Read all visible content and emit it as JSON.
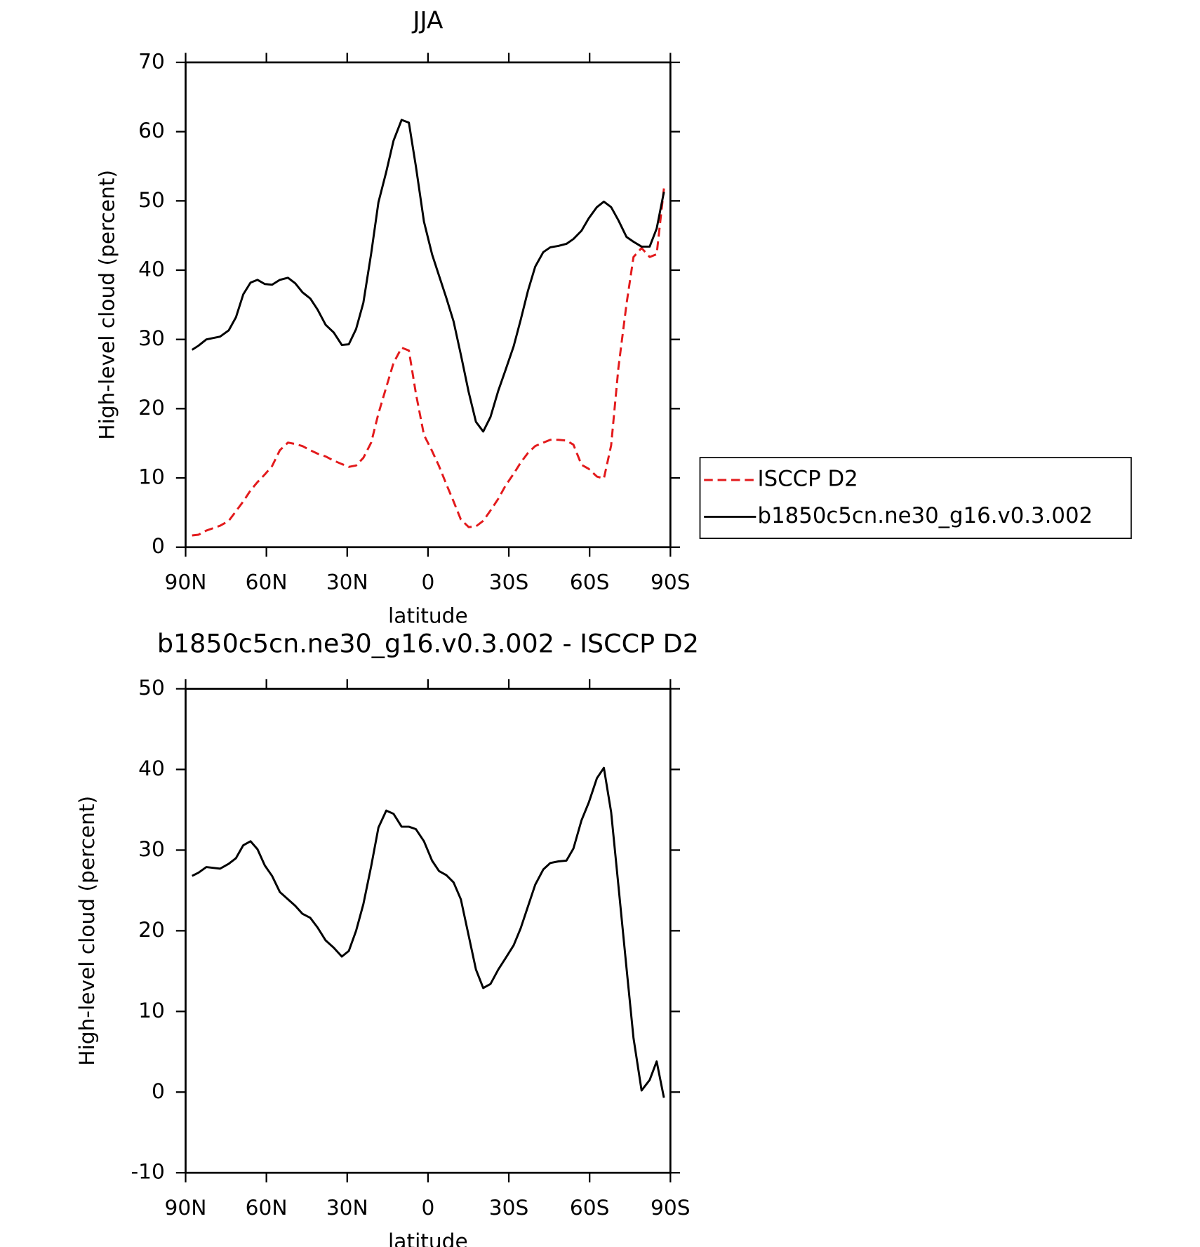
{
  "chart_data": [
    {
      "type": "line",
      "title": "JJA",
      "xlabel": "latitude",
      "ylabel": "High-level cloud (percent)",
      "x": [
        87.6,
        85.2,
        82.3,
        77.2,
        74.0,
        71.3,
        68.6,
        65.9,
        63.3,
        60.6,
        57.9,
        55.0,
        52.0,
        49.3,
        46.6,
        43.7,
        41.0,
        38.0,
        35.0,
        32.0,
        29.4,
        26.7,
        24.0,
        21.1,
        18.4,
        15.5,
        12.8,
        9.8,
        7.1,
        4.5,
        1.5,
        -1.5,
        -4.1,
        -6.8,
        -9.5,
        -12.2,
        -15.1,
        -17.8,
        -20.5,
        -23.2,
        -26.1,
        -28.8,
        -31.8,
        -34.4,
        -37.1,
        -39.8,
        -42.8,
        -45.4,
        -48.4,
        -51.4,
        -54.0,
        -57.0,
        -59.7,
        -62.7,
        -65.3,
        -68.0,
        -70.7,
        -73.7,
        -76.3,
        -79.3,
        -82.3,
        -84.9,
        -87.6
      ],
      "series": [
        {
          "name": "ISCCP D2",
          "color": "#e31a1c",
          "linestyle": "dashed",
          "values": [
            1.7,
            1.8,
            2.4,
            3.1,
            3.8,
            5.2,
            6.6,
            8.2,
            9.4,
            10.5,
            11.7,
            14.0,
            15.1,
            14.9,
            14.6,
            14.0,
            13.5,
            13.1,
            12.5,
            12.0,
            11.6,
            11.8,
            12.9,
            15.1,
            19.3,
            23.1,
            26.6,
            28.8,
            28.4,
            22.2,
            16.2,
            13.9,
            11.7,
            9.1,
            6.6,
            4.0,
            2.9,
            3.0,
            3.8,
            5.3,
            7.0,
            8.9,
            10.6,
            12.2,
            13.6,
            14.6,
            15.1,
            15.5,
            15.5,
            15.4,
            14.8,
            11.9,
            11.3,
            10.2,
            9.9,
            14.7,
            25.9,
            35.1,
            41.9,
            43.2,
            41.9,
            42.3,
            51.8
          ]
        },
        {
          "name": "b1850c5cn.ne30_g16.v0.3.002",
          "color": "#000000",
          "linestyle": "solid",
          "values": [
            28.5,
            29.1,
            30.0,
            30.4,
            31.3,
            33.2,
            36.5,
            38.2,
            38.6,
            38.0,
            37.9,
            38.6,
            38.9,
            38.1,
            36.8,
            35.9,
            34.3,
            32.1,
            31.0,
            29.2,
            29.3,
            31.5,
            35.3,
            42.4,
            49.8,
            54.2,
            58.7,
            61.7,
            61.3,
            55.0,
            47.0,
            42.3,
            39.2,
            36.0,
            32.6,
            27.8,
            22.4,
            18.1,
            16.7,
            18.8,
            22.6,
            25.6,
            29.0,
            32.8,
            37.0,
            40.5,
            42.6,
            43.3,
            43.5,
            43.8,
            44.5,
            45.7,
            47.5,
            49.1,
            49.9,
            49.1,
            47.2,
            44.8,
            44.1,
            43.4,
            43.4,
            46.0,
            51.3
          ]
        }
      ],
      "xlim": [
        90,
        -90
      ],
      "xticks": [
        {
          "value": 90,
          "label": "90N"
        },
        {
          "value": 60,
          "label": "60N"
        },
        {
          "value": 30,
          "label": "30N"
        },
        0,
        {
          "value": -30,
          "label": "30S"
        },
        {
          "value": -60,
          "label": "60S"
        },
        {
          "value": -90,
          "label": "90S"
        }
      ],
      "ylim": [
        0,
        70
      ],
      "yticks": [
        0,
        10,
        20,
        30,
        40,
        50,
        60,
        70
      ],
      "legend": "right"
    },
    {
      "type": "line",
      "title": "b1850c5cn.ne30_g16.v0.3.002 - ISCCP D2",
      "xlabel": "latitude",
      "ylabel": "High-level cloud (percent)",
      "x": [
        87.6,
        85.2,
        82.3,
        77.2,
        74.0,
        71.3,
        68.6,
        65.9,
        63.3,
        60.6,
        57.9,
        55.0,
        52.0,
        49.3,
        46.6,
        43.7,
        41.0,
        38.0,
        35.0,
        32.0,
        29.4,
        26.7,
        24.0,
        21.1,
        18.4,
        15.5,
        12.8,
        9.8,
        7.1,
        4.5,
        1.5,
        -1.5,
        -4.1,
        -6.8,
        -9.5,
        -12.2,
        -15.1,
        -17.8,
        -20.5,
        -23.2,
        -26.1,
        -28.8,
        -31.8,
        -34.4,
        -37.1,
        -39.8,
        -42.8,
        -45.4,
        -48.4,
        -51.4,
        -54.0,
        -57.0,
        -59.7,
        -62.7,
        -65.3,
        -68.0,
        -70.7,
        -73.7,
        -76.3,
        -79.3,
        -82.3,
        -84.9,
        -87.6
      ],
      "values": [
        26.8,
        27.2,
        27.9,
        27.7,
        28.3,
        29.0,
        30.6,
        31.1,
        30.1,
        28.1,
        26.8,
        24.8,
        23.9,
        23.1,
        22.1,
        21.6,
        20.4,
        18.8,
        17.9,
        16.8,
        17.5,
        20.0,
        23.3,
        28.0,
        32.8,
        34.9,
        34.5,
        32.9,
        32.9,
        32.6,
        31.1,
        28.7,
        27.4,
        26.9,
        26.0,
        23.9,
        19.4,
        15.2,
        12.9,
        13.4,
        15.2,
        16.6,
        18.2,
        20.3,
        23.0,
        25.7,
        27.6,
        28.4,
        28.6,
        28.7,
        30.2,
        33.7,
        35.9,
        38.9,
        40.2,
        34.7,
        25.6,
        15.4,
        6.7,
        0.2,
        1.5,
        3.8,
        -0.7
      ],
      "color": "#000000",
      "xlim": [
        90,
        -90
      ],
      "xticks": [
        {
          "value": 90,
          "label": "90N"
        },
        {
          "value": 60,
          "label": "60N"
        },
        {
          "value": 30,
          "label": "30N"
        },
        0,
        {
          "value": -30,
          "label": "30S"
        },
        {
          "value": -60,
          "label": "60S"
        },
        {
          "value": -90,
          "label": "90S"
        }
      ],
      "ylim": [
        -10,
        50
      ],
      "yticks": [
        -10,
        0,
        10,
        20,
        30,
        40,
        50
      ]
    }
  ]
}
